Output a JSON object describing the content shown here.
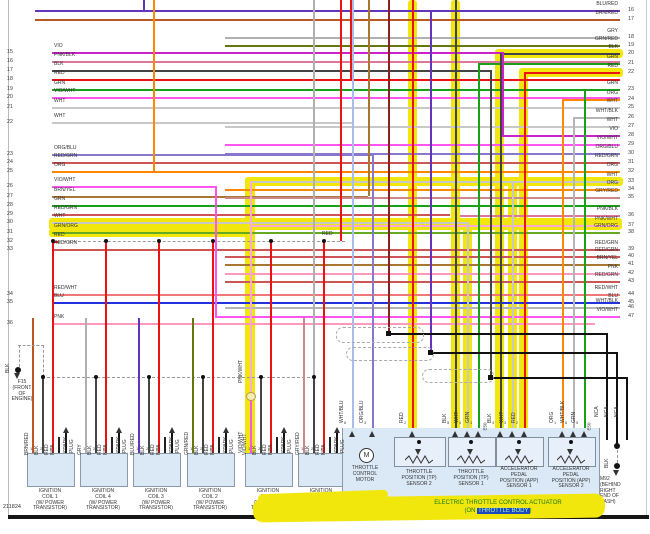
{
  "diagram_id": "211824",
  "left_rows": [
    {
      "n": "15",
      "label": "VIO"
    },
    {
      "n": "16",
      "label": "PNK/BLK"
    },
    {
      "n": "17",
      "label": "BLK"
    },
    {
      "n": "18",
      "label": "RED"
    },
    {
      "n": "19",
      "label": "GRN"
    },
    {
      "n": "20",
      "label": "VIO/WHT"
    },
    {
      "n": "21",
      "label": "WHT"
    },
    {
      "n": "22",
      "label": "WHT"
    },
    {
      "n": "23",
      "label": "ORG/BLU"
    },
    {
      "n": "24",
      "label": "RED/GRN"
    },
    {
      "n": "25",
      "label": "ORG"
    },
    {
      "n": "26",
      "label": "VIO/WHT"
    },
    {
      "n": "27",
      "label": "BRN/YEL"
    },
    {
      "n": "28",
      "label": "GRN"
    },
    {
      "n": "29",
      "label": "RED/GRN"
    },
    {
      "n": "30",
      "label": "WHT"
    },
    {
      "n": "31",
      "label": "GRN/ORG"
    },
    {
      "n": "32",
      "label": "RED"
    },
    {
      "n": "33",
      "label": "RED/GRN"
    },
    {
      "n": "34",
      "label": "RED/WHT"
    },
    {
      "n": "35",
      "label": "BLU"
    },
    {
      "n": "36",
      "label": "PNK"
    }
  ],
  "right_rows": [
    {
      "label": "BLU/RED",
      "n": "16"
    },
    {
      "label": "BRN/RED",
      "n": "17"
    },
    {
      "label": "GRY",
      "n": "18"
    },
    {
      "label": "GRN/RED",
      "n": "19"
    },
    {
      "label": "BLK",
      "n": "20"
    },
    {
      "label": "GRN",
      "n": "21"
    },
    {
      "label": "RED",
      "n": "22"
    },
    {
      "label": "GRN",
      "n": "23"
    },
    {
      "label": "ORG",
      "n": "24"
    },
    {
      "label": "WHT",
      "n": "25"
    },
    {
      "label": "WHT/BLK",
      "n": "26"
    },
    {
      "label": "WHT",
      "n": "27"
    },
    {
      "label": "VIO",
      "n": "28"
    },
    {
      "label": "VIO/WHT",
      "n": "29"
    },
    {
      "label": "ORG/BLU",
      "n": "30"
    },
    {
      "label": "RED/GRN",
      "n": "31"
    },
    {
      "label": "ORG",
      "n": "32"
    },
    {
      "label": "WHT",
      "n": "33"
    },
    {
      "label": "ORG",
      "n": "34"
    },
    {
      "label": "GRY/RED",
      "n": "35"
    },
    {
      "label": "PNK/BLK",
      "n": "36"
    },
    {
      "label": "PNK/WHT",
      "n": "37"
    },
    {
      "label": "GRN/ORG",
      "n": "38"
    },
    {
      "label": "RED/GRN",
      "n": "39"
    },
    {
      "label": "RED/GRN",
      "n": "40"
    },
    {
      "label": "BRN/YEL",
      "n": "41"
    },
    {
      "label": "PNK",
      "n": "42"
    },
    {
      "label": "RED/GRN",
      "n": "43"
    },
    {
      "label": "RED/WHT",
      "n": "44"
    },
    {
      "label": "BLU",
      "n": "45"
    },
    {
      "label": "WHT/BLK",
      "n": "46"
    },
    {
      "label": "VIO/WHT",
      "n": "47"
    }
  ],
  "coils": [
    {
      "title": [
        "IGNITION",
        "COIL 1",
        "(W/ POWER",
        "TRANSISTOR)"
      ],
      "pins": [
        "BRN/RED",
        "BLK",
        "RED",
        "NCA"
      ],
      "pin_numbers": [
        "1",
        "2",
        "3"
      ],
      "spark": [
        "SPARK",
        "PLUG"
      ]
    },
    {
      "title": [
        "IGNITION",
        "COIL 4",
        "(W/ POWER",
        "TRANSISTOR)"
      ],
      "pins": [
        "GRY",
        "BLK",
        "RED",
        "NCA"
      ],
      "pin_numbers": [
        "1",
        "2",
        "3"
      ],
      "spark": [
        "SPARK",
        "PLUG"
      ]
    },
    {
      "title": [
        "IGNITION",
        "COIL 3",
        "(W/ POWER",
        "TRANSISTOR)"
      ],
      "pins": [
        "BLU/RED",
        "BLK",
        "RED",
        "NCA"
      ],
      "pin_numbers": [
        "1",
        "2",
        "3"
      ],
      "spark": [
        "SPARK",
        "PLUG"
      ]
    },
    {
      "title": [
        "IGNITION",
        "COIL 2",
        "(W/ POWER",
        "TRANSISTOR)"
      ],
      "pins": [
        "GRN/RED",
        "BLK",
        "RED",
        "NCA"
      ],
      "pin_numbers": [
        "1",
        "2",
        "3"
      ],
      "spark": [
        "SPARK",
        "PLUG"
      ]
    },
    {
      "title": [
        "IGNITION",
        "COIL 5",
        "(W/ POWER",
        "TRANSISTOR)"
      ],
      "pins": [
        "VIO/WHT",
        "BLK",
        "RED",
        "NCA"
      ],
      "pin_numbers": [
        "1",
        "2",
        "3"
      ],
      "spark": [
        "SPARK",
        "PLUG"
      ]
    },
    {
      "title": [
        "IGNITION",
        "COIL 6",
        "(W/ POWER",
        "TRANSISTOR)"
      ],
      "pins": [
        "GRY/RED",
        "BLK",
        "RED",
        "NCA"
      ],
      "pin_numbers": [
        "1",
        "2",
        "3"
      ],
      "spark": [
        "SPARK",
        "PLUG"
      ]
    }
  ],
  "actuator": {
    "wire_labels": [
      "WHT/BLU",
      "ORG/BLU",
      "RED",
      "BLK",
      "WHT",
      "GRN",
      "BLK",
      "WHT",
      "RED",
      "ORG",
      "WHT/BLK",
      "GRN"
    ],
    "pin_numbers": [
      "6",
      "3",
      "2",
      "5",
      "4",
      "1",
      "4",
      "3",
      "2",
      "1",
      "6",
      "5"
    ],
    "connector": "E50",
    "splice_wire_upper": "PNK/WHT",
    "splice_wire_lower": "VIO/WHT",
    "motor_symbol": "M",
    "components": {
      "motor": [
        "THROTTLE",
        "CONTROL",
        "MOTOR"
      ],
      "tp2": [
        "THROTTLE",
        "POSITION (TP)",
        "SENSOR 2"
      ],
      "tp1": [
        "THROTTLE",
        "POSITION (TP)",
        "SENSOR 1"
      ],
      "app1": [
        "ACCELERATOR",
        "PEDAL",
        "POSITION (APP)",
        "SENSOR 1"
      ],
      "app2": [
        "ACCELERATOR",
        "PEDAL",
        "POSITION (APP)",
        "SENSOR 2"
      ]
    },
    "caption_line1": "ELECTRIC THROTTLE CONTROL ACTUATOR",
    "caption_prefix": "(ON ",
    "caption_highlight": "THROTTLE BODY",
    "caption_suffix": ")"
  },
  "grounds": {
    "f15": [
      "F15",
      "(FRONT",
      "OF",
      "ENGINE)"
    ],
    "m92": [
      "M92",
      "(BEHIND",
      "RIGHT",
      "END OF",
      "DASH)"
    ],
    "blk_label": "BLK",
    "red_bus_label": "RED",
    "nca_label": "NCA"
  },
  "colors": {
    "highlight": "#f1e70d",
    "VIO": "#cc22cc",
    "PNK/BLK": "#dd7799",
    "BLK": "#444444",
    "RED": "#ee1111",
    "GRN": "#18a018",
    "VIO/WHT": "#ff55ee",
    "WHT": "#c8c8c8",
    "ORG/BLU": "#8877cc",
    "RED/GRN": "#cc5555",
    "ORG": "#ff8800",
    "BRN/YEL": "#aa7733",
    "GRN/ORG": "#66aa22",
    "RED/WHT": "#ee7777",
    "BLU": "#2233dd",
    "PNK": "#ff99bb",
    "BLU/RED": "#6633bb",
    "BRN/RED": "#bb5522",
    "GRY": "#b0b0b0",
    "GRN/RED": "#667711",
    "WHT/BLK": "#b5b5b5",
    "GRY/RED": "#cc8888",
    "PNK/WHT": "#ffaad4",
    "WHT/BLU": "#aabbee",
    "NCA": "#222222",
    "box_fill": "#dbe9f7"
  }
}
